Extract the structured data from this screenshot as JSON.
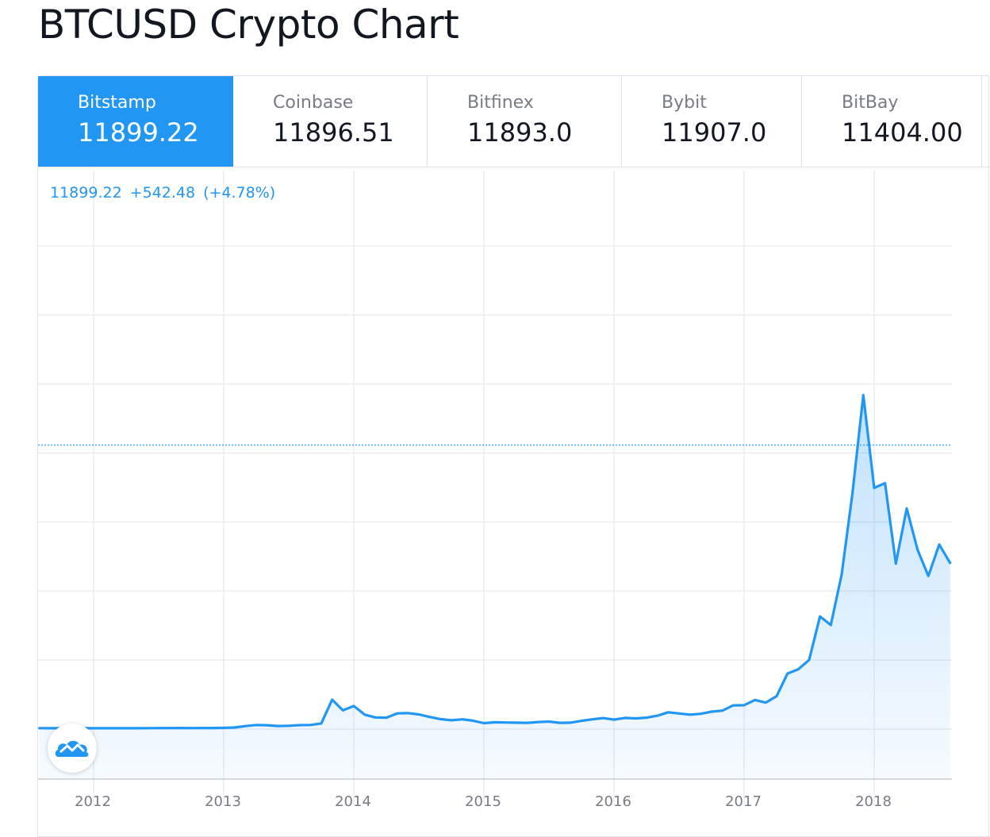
{
  "page": {
    "title": "BTCUSD Crypto Chart"
  },
  "exchanges": [
    {
      "name": "Bitstamp",
      "price": "11899.22",
      "active": true
    },
    {
      "name": "Coinbase",
      "price": "11896.51",
      "active": false
    },
    {
      "name": "Bitfinex",
      "price": "11893.0",
      "active": false
    },
    {
      "name": "Bybit",
      "price": "11907.0",
      "active": false
    },
    {
      "name": "BitBay",
      "price": "11404.00",
      "active": false
    }
  ],
  "legend": {
    "price": "11899.22",
    "change": "+542.48",
    "change_pct": "(+4.78%)"
  },
  "colors": {
    "accent": "#2196f3",
    "line": "#2196f3",
    "grid": "#e0e3eb",
    "axis_text": "#787b86"
  },
  "icons": {
    "logo": "tradingview-cloud-logo-icon"
  },
  "chart_data": {
    "type": "area",
    "title": "",
    "xlabel": "",
    "ylabel": "",
    "x_ticks": [
      "2012",
      "2013",
      "2014",
      "2015",
      "2016",
      "2017",
      "2018"
    ],
    "xlim": [
      "2011-08",
      "2018-08"
    ],
    "ylim": [
      -2000,
      22000
    ],
    "reference_line": {
      "value": 11899.22,
      "style": "dotted"
    },
    "y_axis_labels_visible": false,
    "grid": true,
    "series": [
      {
        "x": [
          "2011-08",
          "2011-09",
          "2011-10",
          "2011-11",
          "2011-12",
          "2012-01",
          "2012-02",
          "2012-03",
          "2012-04",
          "2012-05",
          "2012-06",
          "2012-07",
          "2012-08",
          "2012-09",
          "2012-10",
          "2012-11",
          "2012-12",
          "2013-01",
          "2013-02",
          "2013-03",
          "2013-04",
          "2013-05",
          "2013-06",
          "2013-07",
          "2013-08",
          "2013-09",
          "2013-10",
          "2013-11",
          "2013-12",
          "2014-01",
          "2014-02",
          "2014-03",
          "2014-04",
          "2014-05",
          "2014-06",
          "2014-07",
          "2014-08",
          "2014-09",
          "2014-10",
          "2014-11",
          "2014-12",
          "2015-01",
          "2015-02",
          "2015-03",
          "2015-04",
          "2015-05",
          "2015-06",
          "2015-07",
          "2015-08",
          "2015-09",
          "2015-10",
          "2015-11",
          "2015-12",
          "2016-01",
          "2016-02",
          "2016-03",
          "2016-04",
          "2016-05",
          "2016-06",
          "2016-07",
          "2016-08",
          "2016-09",
          "2016-10",
          "2016-11",
          "2016-12",
          "2017-01",
          "2017-02",
          "2017-03",
          "2017-04",
          "2017-05",
          "2017-06",
          "2017-07",
          "2017-08",
          "2017-09",
          "2017-10",
          "2017-11",
          "2017-12",
          "2018-01",
          "2018-02",
          "2018-03",
          "2018-04",
          "2018-05",
          "2018-06",
          "2018-07",
          "2018-08"
        ],
        "values": [
          8,
          5,
          3,
          3,
          4,
          5,
          5,
          5,
          5,
          5,
          7,
          9,
          10,
          12,
          11,
          12,
          13,
          20,
          33,
          93,
          139,
          129,
          97,
          106,
          135,
          141,
          204,
          1205,
          754,
          936,
          573,
          458,
          448,
          627,
          640,
          585,
          478,
          387,
          338,
          378,
          320,
          217,
          254,
          244,
          236,
          230,
          263,
          284,
          230,
          236,
          314,
          378,
          430,
          368,
          437,
          416,
          448,
          531,
          673,
          624,
          575,
          609,
          700,
          742,
          964,
          970,
          1190,
          1080,
          1350,
          2300,
          2480,
          2875,
          4700,
          4340,
          6460,
          9900,
          14000,
          10100,
          10300,
          6920,
          9240,
          7500,
          6400,
          7720,
          6950
        ]
      }
    ]
  }
}
